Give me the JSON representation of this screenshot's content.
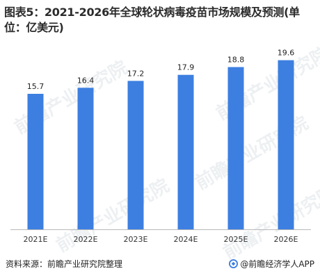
{
  "title": "图表5：2021-2026年全球轮状病毒疫苗市场规模及预测(单位：亿美元)",
  "source": "资料来源：前瞻产业研究院整理",
  "credit": "@前瞻经济学人APP",
  "watermark": "前瞻产业研究院",
  "colors": {
    "bar": "#3d7fe0",
    "axis": "#b8b8b8"
  },
  "chart_data": {
    "type": "bar",
    "title": "图表5：2021-2026年全球轮状病毒疫苗市场规模及预测(单位：亿美元)",
    "categories": [
      "2021E",
      "2022E",
      "2023E",
      "2024E",
      "2025E",
      "2026E"
    ],
    "values": [
      15.7,
      16.4,
      17.2,
      17.9,
      18.8,
      19.6
    ],
    "data_labels": [
      "15.7",
      "16.4",
      "17.2",
      "17.9",
      "18.8",
      "19.6"
    ],
    "xlabel": "",
    "ylabel": "",
    "y_axis_visible": false,
    "grid": false,
    "legend": "none"
  }
}
